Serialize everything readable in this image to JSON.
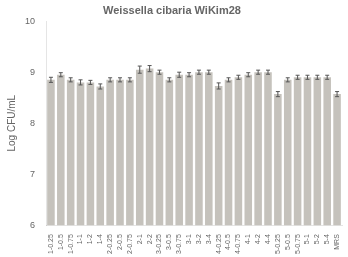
{
  "chart_data": {
    "type": "bar",
    "title": "Weissella cibaria WiKim28",
    "ylabel": "Log CFU/mL",
    "categories": [
      "1-0.25",
      "1-0.5",
      "1-0.75",
      "1-1",
      "1-2",
      "1-4",
      "2-0.25",
      "2-0.5",
      "2-0.75",
      "2-1",
      "2-2",
      "3-0.25",
      "3-0.5",
      "3-0.75",
      "3-1",
      "3-2",
      "3-4",
      "4-0.25",
      "4-0.5",
      "4-0.75",
      "4-1",
      "4-2",
      "4-4",
      "5-0.25",
      "5-0.5",
      "5-0.75",
      "5-1",
      "5-2",
      "5-4",
      "MRS"
    ],
    "values": [
      8.85,
      8.95,
      8.85,
      8.8,
      8.8,
      8.72,
      8.85,
      8.85,
      8.85,
      9.05,
      9.07,
      9.0,
      8.85,
      8.95,
      8.95,
      9.0,
      9.0,
      8.73,
      8.85,
      8.9,
      8.95,
      9.0,
      9.0,
      8.57,
      8.85,
      8.9,
      8.9,
      8.9,
      8.9,
      8.57
    ],
    "errors": [
      0.05,
      0.04,
      0.04,
      0.05,
      0.04,
      0.05,
      0.04,
      0.04,
      0.04,
      0.07,
      0.06,
      0.04,
      0.04,
      0.05,
      0.04,
      0.04,
      0.04,
      0.06,
      0.04,
      0.04,
      0.04,
      0.04,
      0.04,
      0.05,
      0.04,
      0.04,
      0.04,
      0.04,
      0.04,
      0.05
    ],
    "color": "#c5c2bc",
    "ylim": [
      6,
      10
    ],
    "yticks": [
      6,
      7,
      8,
      9,
      10
    ],
    "grid": false
  }
}
